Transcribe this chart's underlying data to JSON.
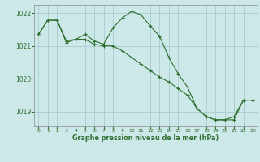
{
  "title": "Graphe pression niveau de la mer (hPa)",
  "background_color": "#cce8e8",
  "grid_color": "#aacccc",
  "line_color": "#2d6e2d",
  "series1_x": [
    0,
    1,
    2,
    3,
    4,
    5,
    6,
    7,
    8,
    9,
    10,
    11,
    12,
    13,
    14,
    15,
    16,
    17,
    18,
    19,
    20,
    21,
    22,
    23
  ],
  "series1_y": [
    1021.35,
    1021.78,
    1021.78,
    1021.15,
    1021.2,
    1021.35,
    1021.15,
    1021.05,
    1021.55,
    1021.85,
    1022.05,
    1021.95,
    1021.6,
    1021.3,
    1020.65,
    1020.15,
    1019.75,
    1019.1,
    1018.85,
    1018.75,
    1018.75,
    1018.85,
    1019.35,
    1019.35
  ],
  "series2_x": [
    0,
    1,
    2,
    3,
    4,
    5,
    6,
    7,
    8,
    9,
    10,
    11,
    12,
    13,
    14,
    15,
    16,
    17,
    18,
    19,
    20,
    21,
    22,
    23
  ],
  "series2_y": [
    1021.35,
    1021.78,
    1021.78,
    1021.1,
    1021.2,
    1021.2,
    1021.05,
    1021.0,
    1021.0,
    1020.85,
    1020.65,
    1020.45,
    1020.25,
    1020.05,
    1019.9,
    1019.7,
    1019.5,
    1019.1,
    1018.85,
    1018.75,
    1018.75,
    1018.75,
    1019.35,
    1019.35
  ],
  "ylim": [
    1018.55,
    1022.25
  ],
  "xlim": [
    -0.5,
    23.5
  ],
  "yticks": [
    1019,
    1020,
    1021,
    1022
  ],
  "xticks": [
    0,
    1,
    2,
    3,
    4,
    5,
    6,
    7,
    8,
    9,
    10,
    11,
    12,
    13,
    14,
    15,
    16,
    17,
    18,
    19,
    20,
    21,
    22,
    23
  ],
  "figsize": [
    3.2,
    2.0
  ],
  "dpi": 100
}
